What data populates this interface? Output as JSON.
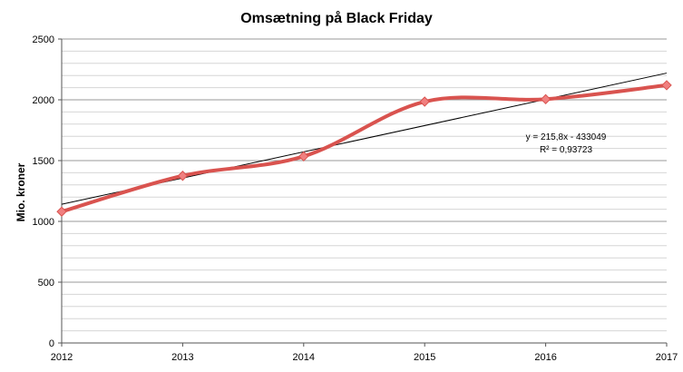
{
  "chart_data": {
    "type": "line",
    "title": "Omsætning på Black Friday",
    "xlabel": "",
    "ylabel": "Mio. kroner",
    "x": [
      2012,
      2013,
      2014,
      2015,
      2016,
      2017
    ],
    "xlim": [
      2012,
      2017
    ],
    "ylim": [
      0,
      2500
    ],
    "y_ticks": [
      0,
      500,
      1000,
      1500,
      2000,
      2500
    ],
    "grid": true,
    "series": [
      {
        "name": "Omsætning",
        "values": [
          1080,
          1375,
          1535,
          1985,
          2005,
          2120
        ],
        "color": "#d9534f",
        "marker_color": "#f08080",
        "smooth": true
      }
    ],
    "trendline": {
      "slope": 215.8,
      "intercept": -433049,
      "color": "#000000",
      "equation_label": "y = 215,8x - 433049",
      "r2_label": "R² = 0,93723"
    }
  }
}
